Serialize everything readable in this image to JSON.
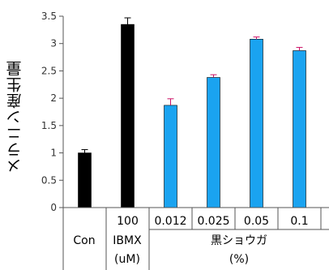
{
  "chart_data": {
    "type": "bar",
    "ylabel": "メラニン産生量",
    "ylim": [
      0,
      3.5
    ],
    "yticks": [
      "0",
      "0.5",
      "1",
      "1.5",
      "2",
      "2.5",
      "3",
      "3.5"
    ],
    "categories": [
      "Con",
      "100",
      "0.012",
      "0.025",
      "0.05",
      "0.1"
    ],
    "values": [
      1.0,
      3.35,
      1.87,
      2.38,
      3.08,
      2.87
    ],
    "errors": [
      0.06,
      0.12,
      0.12,
      0.05,
      0.04,
      0.06
    ],
    "bar_colors": [
      "#000000",
      "#000000",
      "#1aa3f0",
      "#1aa3f0",
      "#1aa3f0",
      "#1aa3f0"
    ],
    "error_colors": [
      "#000000",
      "#000000",
      "#cc1166",
      "#cc1166",
      "#cc1166",
      "#cc1166"
    ],
    "group_labels": {
      "con": "Con",
      "ibmx_line1": "IBMX",
      "ibmx_line2": "(uM)",
      "ginger_line1": "黒ショウガ",
      "ginger_line2": "(%)"
    },
    "grid": false
  }
}
